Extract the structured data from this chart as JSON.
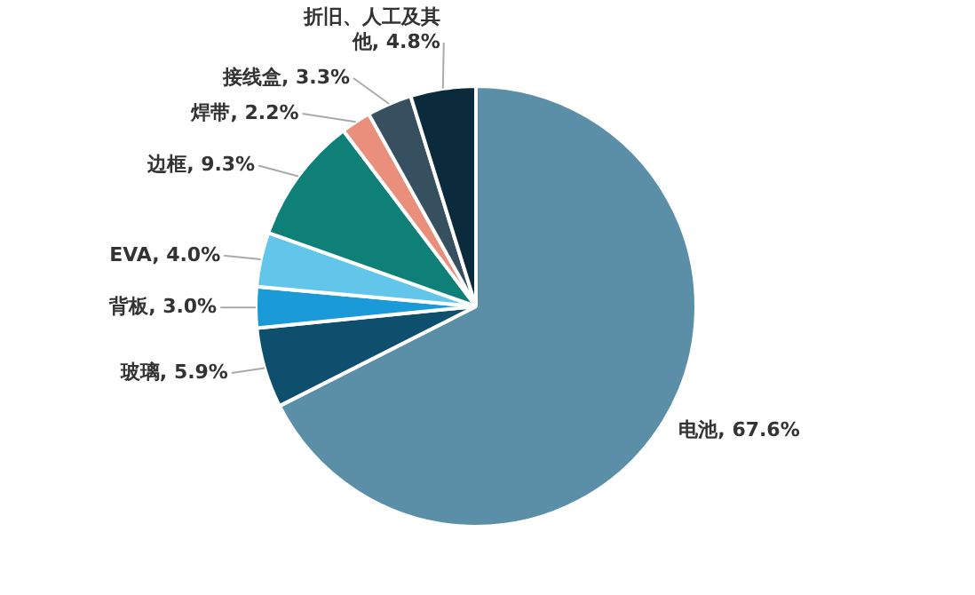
{
  "chart_data": {
    "type": "pie",
    "categories": [
      "电池",
      "玻璃",
      "背板",
      "EVA",
      "边框",
      "焊带",
      "接线盒",
      "折旧、人工及其他"
    ],
    "values": [
      67.6,
      5.9,
      3.0,
      4.0,
      9.3,
      2.2,
      3.3,
      4.8
    ],
    "value_labels": [
      "67.6%",
      "5.9%",
      "3.0%",
      "4.0%",
      "9.3%",
      "2.2%",
      "3.3%",
      "4.8%"
    ],
    "colors": [
      "#5b8fa8",
      "#0d4f6c",
      "#1a9bd7",
      "#62c6ea",
      "#0f8078",
      "#ea8f7b",
      "#37505f",
      "#0b2a3b"
    ],
    "legend": false
  }
}
